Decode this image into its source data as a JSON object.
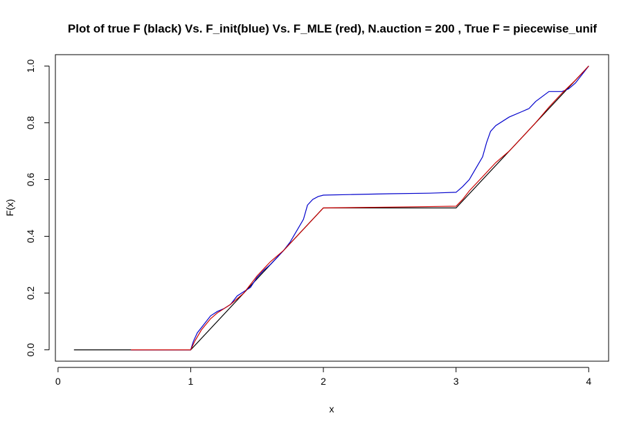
{
  "chart_data": {
    "type": "line",
    "title": "Plot of true F (black) Vs. F_init(blue) Vs. F_MLE (red), N.auction = 200 , True F = piecewise_unif",
    "xlabel": "x",
    "ylabel": "F(x)",
    "xlim": [
      -0.02,
      4.15
    ],
    "ylim": [
      -0.04,
      1.04
    ],
    "xticks": [
      0,
      1,
      2,
      3,
      4
    ],
    "xtick_labels": [
      "0",
      "1",
      "2",
      "3",
      "4"
    ],
    "yticks": [
      0.0,
      0.2,
      0.4,
      0.6,
      0.8,
      1.0
    ],
    "ytick_labels": [
      "0.0",
      "0.2",
      "0.4",
      "0.6",
      "0.8",
      "1.0"
    ],
    "grid": false,
    "series": [
      {
        "color": "#000000",
        "x": [
          0.12,
          1.0,
          2.0,
          3.0,
          4.0
        ],
        "y": [
          0.0,
          0.0,
          0.5,
          0.5,
          1.0
        ]
      },
      {
        "color": "#0000cc",
        "x": [
          0.55,
          1.0,
          1.02,
          1.05,
          1.1,
          1.15,
          1.2,
          1.25,
          1.3,
          1.35,
          1.4,
          1.45,
          1.5,
          1.55,
          1.6,
          1.65,
          1.7,
          1.75,
          1.8,
          1.85,
          1.88,
          1.92,
          1.96,
          2.0,
          2.2,
          2.5,
          2.8,
          3.0,
          3.05,
          3.1,
          3.15,
          3.2,
          3.23,
          3.26,
          3.3,
          3.4,
          3.5,
          3.55,
          3.6,
          3.7,
          3.8,
          3.85,
          3.9,
          4.0
        ],
        "y": [
          0.0,
          0.0,
          0.03,
          0.06,
          0.09,
          0.12,
          0.135,
          0.145,
          0.16,
          0.19,
          0.205,
          0.22,
          0.255,
          0.28,
          0.3,
          0.325,
          0.35,
          0.38,
          0.42,
          0.46,
          0.51,
          0.53,
          0.54,
          0.545,
          0.547,
          0.55,
          0.552,
          0.555,
          0.575,
          0.6,
          0.64,
          0.68,
          0.73,
          0.77,
          0.79,
          0.82,
          0.84,
          0.85,
          0.875,
          0.91,
          0.91,
          0.92,
          0.94,
          1.0
        ]
      },
      {
        "color": "#cc0000",
        "x": [
          0.55,
          1.0,
          1.03,
          1.08,
          1.15,
          1.2,
          1.3,
          1.4,
          1.5,
          1.6,
          1.7,
          1.8,
          1.9,
          2.0,
          2.5,
          3.0,
          3.05,
          3.1,
          3.2,
          3.3,
          3.4,
          3.5,
          3.6,
          3.7,
          3.8,
          3.9,
          4.0
        ],
        "y": [
          0.0,
          0.0,
          0.03,
          0.07,
          0.11,
          0.13,
          0.16,
          0.2,
          0.26,
          0.31,
          0.35,
          0.4,
          0.45,
          0.5,
          0.503,
          0.506,
          0.53,
          0.56,
          0.61,
          0.66,
          0.7,
          0.75,
          0.8,
          0.855,
          0.905,
          0.95,
          1.0
        ]
      }
    ]
  }
}
